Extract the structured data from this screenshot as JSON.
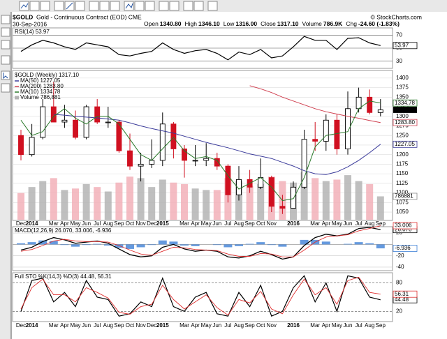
{
  "header": {
    "symbol": "$GOLD",
    "name": "Gold - Continuous Contract (EOD) CME",
    "date": "30-Sep-2016",
    "copyright": "© StockCharts.com",
    "quote": [
      {
        "label": "Open",
        "value": "1340.80"
      },
      {
        "label": "High",
        "value": "1346.10"
      },
      {
        "label": "Low",
        "value": "1316.00"
      },
      {
        "label": "Close",
        "value": "1317.10"
      },
      {
        "label": "Volume",
        "value": "786.9K"
      },
      {
        "label": "Chg",
        "value": "-24.60 (-1.83%)"
      }
    ]
  },
  "chart_data": [
    {
      "type": "line",
      "title": "RSI(14) 53.97",
      "ylim": [
        20,
        80
      ],
      "yticks": [
        70,
        50,
        30
      ],
      "series": [
        {
          "color": "#000000",
          "values": [
            45,
            55,
            62,
            58,
            52,
            48,
            58,
            55,
            52,
            40,
            38,
            42,
            45,
            58,
            48,
            42,
            46,
            48,
            42,
            32,
            44,
            40,
            48,
            35,
            38,
            52,
            68,
            62,
            62,
            48,
            65,
            66,
            58,
            53.97
          ]
        }
      ]
    },
    {
      "type": "candlestick",
      "title": "$GOLD (Weekly) 1317.10",
      "categories": [
        "Dec",
        "2014",
        null,
        "Mar",
        "Apr",
        "May",
        "Jun",
        "Jul",
        "Aug",
        "Sep",
        "Oct",
        "Nov",
        "Dec",
        "2015",
        null,
        "Mar",
        "Apr",
        "May",
        "Jun",
        "Jul",
        "Aug",
        "Sep",
        "Oct",
        "Nov",
        null,
        "2016",
        null,
        "Mar",
        "Apr",
        "May",
        "Jun",
        "Jul",
        "Aug",
        "Sep"
      ],
      "open": [
        1250,
        1200,
        1245,
        1325,
        1285,
        1290,
        1245,
        1325,
        1285,
        1285,
        1210,
        1170,
        1175,
        1185,
        1280,
        1215,
        1185,
        1185,
        1190,
        1170,
        1095,
        1135,
        1115,
        1140,
        1065,
        1060,
        1115,
        1240,
        1235,
        1290,
        1215,
        1320,
        1350,
        1310
      ],
      "high": [
        1265,
        1280,
        1345,
        1390,
        1330,
        1315,
        1330,
        1345,
        1325,
        1290,
        1255,
        1205,
        1240,
        1310,
        1285,
        1225,
        1225,
        1230,
        1205,
        1175,
        1170,
        1160,
        1190,
        1145,
        1095,
        1130,
        1265,
        1285,
        1305,
        1305,
        1365,
        1375,
        1370,
        1345
      ],
      "low": [
        1185,
        1195,
        1240,
        1285,
        1270,
        1240,
        1240,
        1280,
        1270,
        1205,
        1160,
        1130,
        1165,
        1170,
        1190,
        1140,
        1170,
        1170,
        1160,
        1075,
        1080,
        1100,
        1110,
        1050,
        1045,
        1060,
        1110,
        1210,
        1210,
        1200,
        1200,
        1310,
        1305,
        1300
      ],
      "close": [
        1200,
        1245,
        1325,
        1285,
        1290,
        1245,
        1325,
        1285,
        1285,
        1210,
        1170,
        1175,
        1185,
        1280,
        1215,
        1185,
        1185,
        1190,
        1170,
        1095,
        1135,
        1115,
        1140,
        1065,
        1060,
        1115,
        1240,
        1235,
        1290,
        1215,
        1320,
        1350,
        1310,
        1317.1
      ],
      "value_labels": [
        null,
        null,
        null,
        null,
        null,
        null,
        null,
        null,
        null,
        null,
        null,
        null,
        null,
        null,
        null,
        null,
        null,
        null,
        null,
        null,
        null,
        null,
        null,
        null,
        null,
        null,
        null,
        null,
        null,
        null,
        null,
        null,
        null,
        "1317.10"
      ],
      "up_color": "#000000",
      "down_color": "#d01020",
      "ylim": [
        1030,
        1418
      ],
      "yticks": [
        1400,
        1375,
        1350,
        1325,
        1300,
        1275,
        1250,
        1225,
        1200,
        1175,
        1150,
        1125,
        1100,
        1075,
        1050
      ],
      "grid": true,
      "overlays": [
        {
          "name": "MA(50) 1227.05",
          "color": "#3a3a9a",
          "values": [
            null,
            null,
            null,
            1305,
            1303,
            1300,
            1298,
            1296,
            1293,
            1290,
            1283,
            1275,
            1268,
            1262,
            1256,
            1248,
            1240,
            1232,
            1225,
            1218,
            1210,
            1202,
            1196,
            1190,
            1180,
            1170,
            1158,
            1150,
            1148,
            1155,
            1168,
            1185,
            1205,
            1227.05
          ]
        },
        {
          "name": "MA(200) 1283.80",
          "color": "#d04050",
          "values": [
            null,
            null,
            null,
            null,
            null,
            null,
            null,
            null,
            null,
            null,
            null,
            null,
            null,
            null,
            null,
            null,
            null,
            null,
            null,
            null,
            null,
            1380,
            1372,
            1362,
            1350,
            1340,
            1330,
            1320,
            1312,
            1306,
            1300,
            1295,
            1289,
            1283.8
          ],
          "value_labels": [
            null,
            null,
            null,
            null,
            null,
            null,
            null,
            null,
            null,
            null,
            null,
            null,
            null,
            null,
            null,
            null,
            null,
            null,
            null,
            null,
            null,
            null,
            null,
            null,
            null,
            null,
            null,
            null,
            null,
            null,
            null,
            null,
            null,
            "1283.80"
          ]
        },
        {
          "name": "MA(10) 1334.78",
          "color": "#2a7a2a",
          "values": [
            1290,
            1250,
            1260,
            1300,
            1320,
            1295,
            1280,
            1300,
            1300,
            1280,
            1240,
            1200,
            1185,
            1215,
            1245,
            1210,
            1190,
            1195,
            1185,
            1145,
            1110,
            1125,
            1140,
            1115,
            1080,
            1085,
            1140,
            1220,
            1250,
            1255,
            1260,
            1320,
            1340,
            1334.78
          ]
        }
      ],
      "volume": {
        "name": "Volume 786,881",
        "vlim": [
          0,
          5000000
        ],
        "values": [
          900000,
          1100000,
          1300000,
          1400000,
          1000000,
          1050000,
          1200000,
          1100000,
          950000,
          1250000,
          1450000,
          1400000,
          1100000,
          1350000,
          1250000,
          1200000,
          1050000,
          1000000,
          1000000,
          1400000,
          1300000,
          1150000,
          1200000,
          1450000,
          1300000,
          1250000,
          1600000,
          1400000,
          1300000,
          1350000,
          1500000,
          1300000,
          1200000,
          786881
        ]
      }
    },
    {
      "type": "macd",
      "title": "MACD(12,26,9) 26.070, 33.006, -6.936",
      "ylim": [
        -45,
        30
      ],
      "yticks": [
        20,
        -20,
        -40
      ],
      "series": [
        {
          "color": "#000000",
          "values": [
            -10,
            -5,
            5,
            12,
            8,
            2,
            4,
            6,
            2,
            -8,
            -18,
            -22,
            -20,
            -5,
            0,
            -8,
            -12,
            -10,
            -12,
            -22,
            -24,
            -20,
            -12,
            -18,
            -26,
            -22,
            -2,
            12,
            18,
            15,
            18,
            28,
            30,
            26.07
          ],
          "value_labels": [
            null,
            null,
            null,
            null,
            null,
            null,
            null,
            null,
            null,
            null,
            null,
            null,
            null,
            null,
            null,
            null,
            null,
            null,
            null,
            null,
            null,
            null,
            null,
            null,
            null,
            null,
            null,
            null,
            null,
            null,
            null,
            null,
            null,
            "26.070"
          ]
        },
        {
          "color": "#e03030",
          "values": [
            -12,
            -9,
            -2,
            6,
            9,
            6,
            5,
            5,
            4,
            -2,
            -10,
            -17,
            -19,
            -12,
            -5,
            -6,
            -9,
            -10,
            -11,
            -17,
            -21,
            -21,
            -16,
            -17,
            -22,
            -22,
            -10,
            4,
            13,
            15,
            17,
            24,
            28,
            33.006
          ]
        }
      ],
      "histogram": {
        "color": "#3d7fd6",
        "values": [
          2,
          4,
          7,
          6,
          -1,
          -4,
          -1,
          1,
          -2,
          -6,
          -8,
          -5,
          -1,
          7,
          5,
          -2,
          -3,
          0,
          -1,
          -5,
          -3,
          1,
          4,
          -1,
          -4,
          0,
          8,
          8,
          5,
          0,
          1,
          4,
          2,
          -6.936
        ]
      }
    },
    {
      "type": "line",
      "title": "Full STO %K(14,3) %D(3) 44.48, 56.31",
      "categories": [
        "Dec",
        "2014",
        null,
        "Mar",
        "Apr",
        "May",
        "Jun",
        "Jul",
        "Aug",
        "Sep",
        "Oct",
        "Nov",
        "Dec",
        "2015",
        null,
        "Mar",
        "Apr",
        "May",
        "Jun",
        "Jul",
        "Aug",
        "Sep",
        "Oct",
        "Nov",
        null,
        "2016",
        null,
        "Mar",
        "Apr",
        "May",
        "Jun",
        "Jul",
        "Aug",
        "Sep"
      ],
      "ylim": [
        0,
        100
      ],
      "yticks": [
        80,
        20
      ],
      "series": [
        {
          "color": "#000000",
          "values": [
            20,
            85,
            90,
            40,
            60,
            30,
            85,
            50,
            45,
            10,
            15,
            40,
            30,
            90,
            30,
            20,
            50,
            60,
            15,
            10,
            60,
            30,
            75,
            10,
            20,
            70,
            95,
            40,
            80,
            20,
            95,
            90,
            50,
            44.48
          ]
        },
        {
          "color": "#e03030",
          "values": [
            25,
            70,
            88,
            55,
            55,
            40,
            70,
            60,
            48,
            18,
            14,
            30,
            35,
            75,
            45,
            25,
            40,
            55,
            28,
            12,
            45,
            38,
            62,
            25,
            15,
            55,
            88,
            55,
            70,
            35,
            85,
            92,
            60,
            56.31
          ]
        }
      ]
    }
  ]
}
